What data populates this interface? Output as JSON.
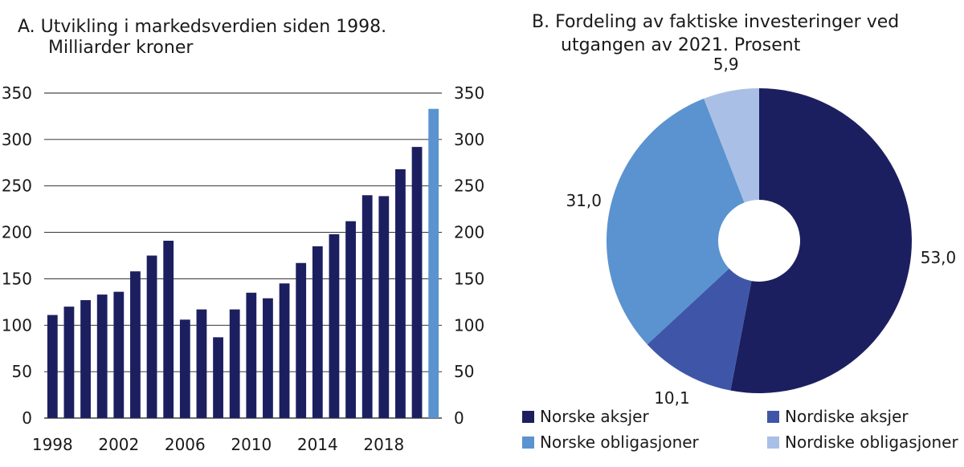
{
  "chart_data": [
    {
      "type": "bar",
      "title_line1": "A.  Utvikling i markedsverdien siden 1998.",
      "title_line2": "Milliarder kroner",
      "xlabel": "",
      "ylabel": "",
      "ylim": [
        0,
        350
      ],
      "yticks": [
        "0",
        "50",
        "100",
        "150",
        "200",
        "250",
        "300",
        "350"
      ],
      "x_ticks": [
        "1998",
        "2002",
        "2006",
        "2010",
        "2014",
        "2018"
      ],
      "categories": [
        "1998",
        "1999",
        "2000",
        "2001",
        "2002",
        "2003",
        "2004",
        "2005",
        "2006",
        "2007",
        "2008",
        "2009",
        "2010",
        "2011",
        "2012",
        "2013",
        "2014",
        "2015",
        "2016",
        "2017",
        "2018",
        "2019",
        "2020",
        "2021"
      ],
      "values": [
        111,
        120,
        127,
        133,
        136,
        158,
        175,
        191,
        106,
        117,
        87,
        117,
        135,
        129,
        145,
        167,
        185,
        198,
        212,
        240,
        239,
        268,
        292,
        333
      ],
      "bar_color": "#1c1f5f",
      "highlight_color": "#5a93cf",
      "highlight_index": 23
    },
    {
      "type": "pie",
      "title_line1": "B.  Fordeling av faktiske investeringer ved",
      "title_line2": "utgangen av 2021. Prosent",
      "slices": [
        {
          "label": "Norske aksjer",
          "value": 53.0,
          "display": "53,0",
          "color": "#1c1f5f"
        },
        {
          "label": "Nordiske aksjer",
          "value": 10.1,
          "display": "10,1",
          "color": "#3f56a8"
        },
        {
          "label": "Norske obligasjoner",
          "value": 31.0,
          "display": "31,0",
          "color": "#5a93cf"
        },
        {
          "label": "Nordiske obligasjoner",
          "value": 5.9,
          "display": "5,9",
          "color": "#a9bfe6"
        }
      ],
      "legend_placement": "bottom"
    }
  ]
}
